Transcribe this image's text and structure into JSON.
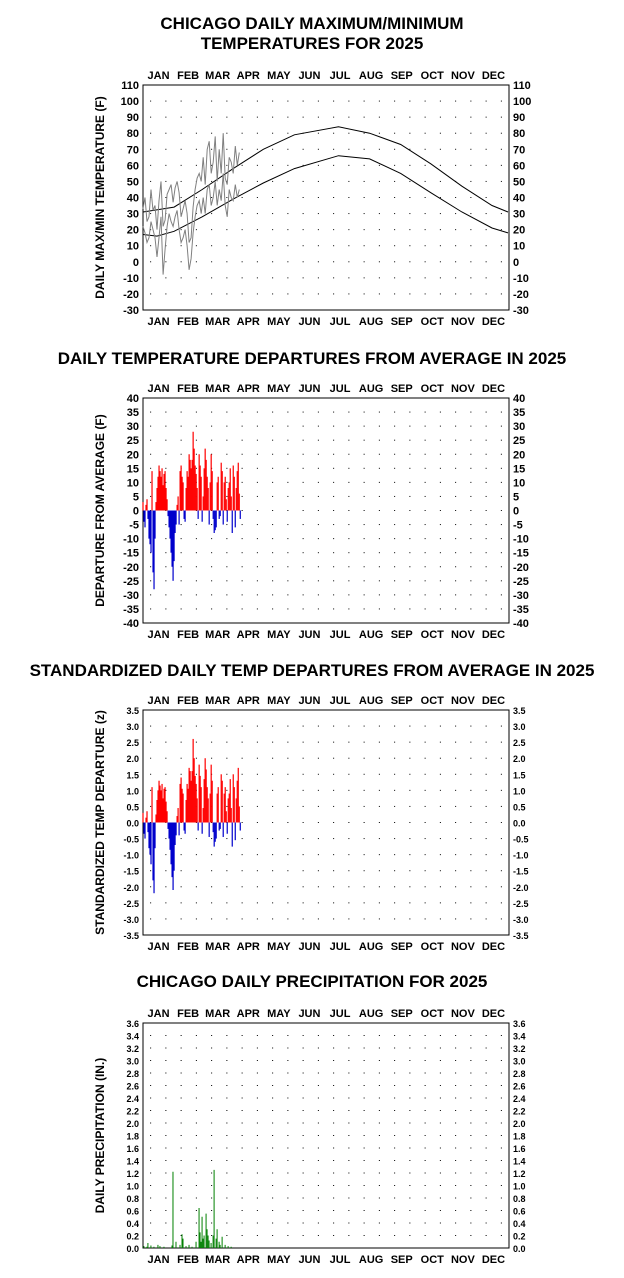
{
  "months": [
    "JAN",
    "FEB",
    "MAR",
    "APR",
    "MAY",
    "JUN",
    "JUL",
    "AUG",
    "SEP",
    "OCT",
    "NOV",
    "DEC"
  ],
  "colors": {
    "positive": "#ff0000",
    "negative": "#0000cc",
    "precip": "#008000",
    "observed": "#808080",
    "normals": "#000000"
  },
  "chart_data": [
    {
      "type": "line",
      "title_lines": [
        "CHICAGO DAILY MAXIMUM/MINIMUM",
        "TEMPERATURES FOR 2025"
      ],
      "ylabel": "DAILY MAX/MIN TEMPERATURE (F)",
      "ylim": [
        -30,
        110
      ],
      "yticks": [
        -30,
        -20,
        -10,
        0,
        10,
        20,
        30,
        40,
        50,
        60,
        70,
        80,
        90,
        100,
        110
      ],
      "ytick_labels": [
        "-30",
        "-20",
        "-10",
        "0",
        "10",
        "20",
        "30",
        "40",
        "50",
        "60",
        "70",
        "80",
        "90",
        "100",
        "110"
      ],
      "x_unit": "day of year 2025",
      "xlim": [
        1,
        365
      ],
      "grid": true,
      "series": [
        {
          "role": "normal_high",
          "x": [
            1,
            32,
            60,
            91,
            121,
            152,
            196,
            227,
            258,
            288,
            319,
            349,
            365
          ],
          "values": [
            31,
            34,
            45,
            58,
            70,
            79,
            84,
            80,
            73,
            61,
            47,
            35,
            31
          ]
        },
        {
          "role": "normal_low",
          "x": [
            1,
            15,
            32,
            60,
            91,
            121,
            152,
            196,
            227,
            258,
            288,
            319,
            349,
            365
          ],
          "values": [
            17,
            16,
            19,
            28,
            39,
            49,
            58,
            66,
            64,
            55,
            43,
            31,
            21,
            18
          ]
        },
        {
          "role": "observed_high",
          "x": [
            1,
            3,
            5,
            7,
            9,
            11,
            13,
            15,
            17,
            19,
            21,
            23,
            25,
            27,
            29,
            31,
            33,
            35,
            37,
            39,
            41,
            43,
            45,
            47,
            49,
            51,
            53,
            55,
            57,
            59,
            61,
            63,
            65,
            67,
            69,
            71,
            73,
            75,
            77,
            79,
            81,
            83,
            85,
            87,
            89,
            91,
            93,
            95,
            97
          ],
          "values": [
            33,
            40,
            25,
            28,
            45,
            32,
            35,
            20,
            38,
            50,
            22,
            26,
            42,
            45,
            48,
            37,
            46,
            50,
            43,
            28,
            33,
            38,
            30,
            12,
            15,
            34,
            45,
            52,
            55,
            50,
            65,
            48,
            70,
            75,
            55,
            62,
            78,
            50,
            70,
            55,
            80,
            52,
            48,
            65,
            62,
            55,
            72,
            60,
            68
          ]
        },
        {
          "role": "observed_low",
          "x": [
            1,
            3,
            5,
            7,
            9,
            11,
            13,
            15,
            17,
            19,
            21,
            23,
            25,
            27,
            29,
            31,
            33,
            35,
            37,
            39,
            41,
            43,
            45,
            47,
            49,
            51,
            53,
            55,
            57,
            59,
            61,
            63,
            65,
            67,
            69,
            71,
            73,
            75,
            77,
            79,
            81,
            83,
            85,
            87,
            89,
            91,
            93,
            95,
            97
          ],
          "values": [
            22,
            18,
            12,
            15,
            25,
            20,
            15,
            3,
            15,
            28,
            -8,
            8,
            22,
            30,
            25,
            22,
            28,
            32,
            20,
            12,
            15,
            20,
            10,
            -5,
            2,
            18,
            28,
            35,
            38,
            30,
            40,
            30,
            45,
            48,
            35,
            40,
            50,
            35,
            45,
            38,
            55,
            35,
            28,
            45,
            40,
            38,
            48,
            40,
            45
          ]
        }
      ]
    },
    {
      "type": "bar",
      "title": "DAILY TEMPERATURE DEPARTURES FROM AVERAGE IN 2025",
      "ylabel": "DEPARTURE FROM AVERAGE (F)",
      "ylim": [
        -40,
        40
      ],
      "yticks": [
        -40,
        -35,
        -30,
        -25,
        -20,
        -15,
        -10,
        -5,
        0,
        5,
        10,
        15,
        20,
        25,
        30,
        35,
        40
      ],
      "ytick_labels": [
        "-40",
        "-35",
        "-30",
        "-25",
        "-20",
        "-15",
        "-10",
        "-5",
        "0",
        "5",
        "10",
        "15",
        "20",
        "25",
        "30",
        "35",
        "40"
      ],
      "xlim": [
        1,
        365
      ],
      "grid": true,
      "x": [
        1,
        2,
        3,
        4,
        5,
        6,
        7,
        8,
        9,
        10,
        11,
        12,
        13,
        14,
        15,
        16,
        17,
        18,
        19,
        20,
        21,
        22,
        23,
        24,
        25,
        26,
        27,
        28,
        29,
        30,
        31,
        32,
        33,
        34,
        35,
        36,
        37,
        38,
        39,
        40,
        41,
        42,
        43,
        44,
        45,
        46,
        47,
        48,
        49,
        50,
        51,
        52,
        53,
        54,
        55,
        56,
        57,
        58,
        59,
        60,
        61,
        62,
        63,
        64,
        65,
        66,
        67,
        68,
        69,
        70,
        71,
        72,
        73,
        74,
        75,
        76,
        77,
        78,
        79,
        80,
        81,
        82,
        83,
        84,
        85,
        86,
        87,
        88,
        89,
        90,
        91,
        92,
        93,
        94,
        95,
        96,
        97,
        98
      ],
      "values": [
        3,
        -4,
        -6,
        2,
        4,
        -3,
        -10,
        -12,
        -15,
        14,
        -22,
        -28,
        -10,
        3,
        8,
        12,
        16,
        14,
        12,
        15,
        9,
        13,
        14,
        8,
        4,
        -2,
        -6,
        -10,
        -15,
        -20,
        -25,
        -18,
        -8,
        -5,
        2,
        5,
        -5,
        14,
        16,
        12,
        10,
        -3,
        -4,
        8,
        14,
        12,
        20,
        18,
        15,
        18,
        28,
        22,
        16,
        13,
        8,
        -3,
        20,
        16,
        12,
        -4,
        5,
        15,
        22,
        18,
        12,
        8,
        -5,
        10,
        20,
        14,
        -3,
        -8,
        -7,
        -6,
        10,
        12,
        -3,
        -2,
        17,
        14,
        -5,
        10,
        12,
        4,
        -4,
        8,
        10,
        15,
        5,
        -8,
        16,
        12,
        -6,
        8,
        14,
        17,
        6,
        -3
      ]
    },
    {
      "type": "bar",
      "title": "STANDARDIZED DAILY TEMP DEPARTURES FROM AVERAGE IN 2025",
      "ylabel": "STANDARDIZED TEMP DEPARTURE (z)",
      "ylim": [
        -3.5,
        3.5
      ],
      "yticks": [
        -3.5,
        -3.0,
        -2.5,
        -2.0,
        -1.5,
        -1.0,
        -0.5,
        0,
        0.5,
        1.0,
        1.5,
        2.0,
        2.5,
        3.0,
        3.5
      ],
      "ytick_labels": [
        "-3.5",
        "-3.0",
        "-2.5",
        "-2.0",
        "-1.5",
        "-1.0",
        "-0.5",
        "0.0",
        "0.5",
        "1.0",
        "1.5",
        "2.0",
        "2.5",
        "3.0",
        "3.5"
      ],
      "xlim": [
        1,
        365
      ],
      "grid": true,
      "x": [
        1,
        2,
        3,
        4,
        5,
        6,
        7,
        8,
        9,
        10,
        11,
        12,
        13,
        14,
        15,
        16,
        17,
        18,
        19,
        20,
        21,
        22,
        23,
        24,
        25,
        26,
        27,
        28,
        29,
        30,
        31,
        32,
        33,
        34,
        35,
        36,
        37,
        38,
        39,
        40,
        41,
        42,
        43,
        44,
        45,
        46,
        47,
        48,
        49,
        50,
        51,
        52,
        53,
        54,
        55,
        56,
        57,
        58,
        59,
        60,
        61,
        62,
        63,
        64,
        65,
        66,
        67,
        68,
        69,
        70,
        71,
        72,
        73,
        74,
        75,
        76,
        77,
        78,
        79,
        80,
        81,
        82,
        83,
        84,
        85,
        86,
        87,
        88,
        89,
        90,
        91,
        92,
        93,
        94,
        95,
        96,
        97,
        98
      ],
      "values": [
        0.3,
        -0.35,
        -0.5,
        0.15,
        0.35,
        -0.3,
        -0.8,
        -1.0,
        -1.3,
        1.1,
        -1.8,
        -2.2,
        -0.8,
        0.25,
        0.7,
        1.0,
        1.3,
        1.15,
        1.0,
        1.2,
        0.75,
        1.05,
        1.1,
        0.65,
        0.35,
        -0.2,
        -0.5,
        -0.85,
        -1.3,
        -1.7,
        -2.1,
        -1.5,
        -0.7,
        -0.4,
        0.2,
        0.45,
        -0.4,
        1.2,
        1.4,
        1.05,
        0.9,
        -0.25,
        -0.35,
        0.7,
        1.2,
        1.05,
        1.7,
        1.6,
        1.3,
        1.6,
        2.6,
        2.0,
        1.45,
        1.2,
        0.75,
        -0.25,
        1.8,
        1.45,
        1.1,
        -0.35,
        0.45,
        1.35,
        2.0,
        1.65,
        1.1,
        0.75,
        -0.45,
        0.9,
        1.8,
        1.3,
        -0.3,
        -0.75,
        -0.6,
        -0.5,
        0.9,
        1.1,
        -0.25,
        -0.2,
        1.5,
        1.3,
        -0.45,
        0.9,
        1.1,
        0.35,
        -0.35,
        0.75,
        0.9,
        1.35,
        0.45,
        -0.75,
        1.5,
        1.1,
        -0.55,
        0.75,
        1.3,
        1.7,
        0.5,
        -0.25
      ]
    },
    {
      "type": "bar",
      "title": "CHICAGO DAILY PRECIPITATION FOR 2025",
      "ylabel": "DAILY PRECIPITATION (IN.)",
      "ylim": [
        0,
        3.6
      ],
      "yticks": [
        0,
        0.2,
        0.4,
        0.6,
        0.8,
        1.0,
        1.2,
        1.4,
        1.6,
        1.8,
        2.0,
        2.2,
        2.4,
        2.6,
        2.8,
        3.0,
        3.2,
        3.4,
        3.6
      ],
      "ytick_labels": [
        "0.0",
        "0.2",
        "0.4",
        "0.6",
        "0.8",
        "1.0",
        "1.2",
        "1.4",
        "1.6",
        "1.8",
        "2.0",
        "2.2",
        "2.4",
        "2.6",
        "2.8",
        "3.0",
        "3.2",
        "3.4",
        "3.6"
      ],
      "xlim": [
        1,
        365
      ],
      "grid": true,
      "x": [
        2,
        5,
        6,
        9,
        12,
        16,
        18,
        22,
        30,
        31,
        34,
        38,
        40,
        41,
        44,
        47,
        50,
        54,
        57,
        58,
        59,
        60,
        61,
        62,
        64,
        65,
        66,
        67,
        69,
        71,
        72,
        74,
        75,
        77,
        78,
        80,
        83,
        86,
        89
      ],
      "values": [
        0.03,
        0.02,
        0.08,
        0.04,
        0.02,
        0.05,
        0.03,
        0.02,
        0.04,
        1.22,
        0.1,
        0.05,
        0.22,
        0.15,
        0.03,
        0.05,
        0.02,
        0.1,
        0.64,
        0.25,
        0.1,
        0.5,
        0.15,
        0.2,
        0.55,
        0.3,
        0.2,
        0.12,
        0.08,
        0.2,
        1.25,
        0.15,
        0.3,
        0.1,
        0.05,
        0.18,
        0.05,
        0.03,
        0.02
      ]
    }
  ]
}
